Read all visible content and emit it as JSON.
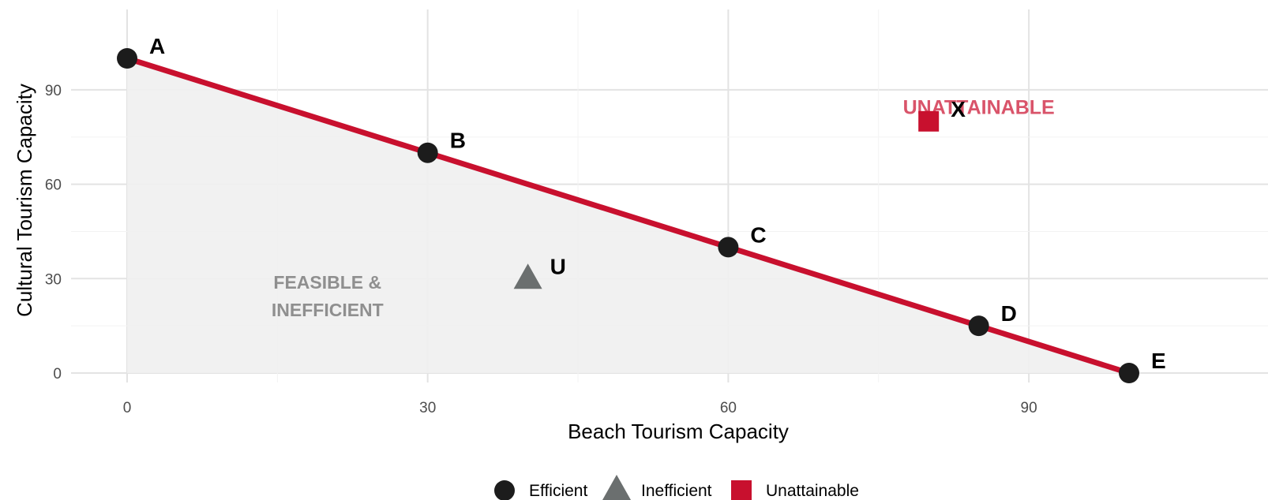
{
  "chart_data": {
    "type": "line",
    "xlabel": "Beach Tourism Capacity",
    "ylabel": "Cultural Tourism Capacity",
    "xlim": [
      -6,
      113
    ],
    "ylim": [
      -6,
      113
    ],
    "x_ticks": [
      0,
      30,
      60,
      90
    ],
    "y_ticks": [
      0,
      30,
      60,
      90
    ],
    "grid": true,
    "frontier": {
      "color": "#C8102E",
      "points": [
        {
          "label": "A",
          "x": 0,
          "y": 100
        },
        {
          "label": "B",
          "x": 30,
          "y": 70
        },
        {
          "label": "C",
          "x": 60,
          "y": 40
        },
        {
          "label": "D",
          "x": 85,
          "y": 15
        },
        {
          "label": "E",
          "x": 100,
          "y": 0
        }
      ]
    },
    "inefficient_point": {
      "label": "U",
      "x": 40,
      "y": 30,
      "color": "#6B6F6F"
    },
    "unattainable_point": {
      "label": "X",
      "x": 80,
      "y": 80,
      "color": "#C8102E"
    },
    "annotations": [
      {
        "text_lines": [
          "FEASIBLE &",
          "INEFFICIENT"
        ],
        "x": 20,
        "y": 24,
        "color": "#8F8F8F"
      },
      {
        "text_lines": [
          "UNATTAINABLE"
        ],
        "x": 85,
        "y": 84,
        "color": "#D9546A"
      }
    ],
    "feasible_fill_color": "#EFEFEF",
    "efficient_color": "#1C1C1C",
    "legend": {
      "position": "bottom",
      "items": [
        {
          "shape": "circle",
          "label": "Efficient",
          "color": "#1C1C1C"
        },
        {
          "shape": "triangle",
          "label": "Inefficient",
          "color": "#6B6F6F"
        },
        {
          "shape": "square",
          "label": "Unattainable",
          "color": "#C8102E"
        }
      ]
    }
  }
}
